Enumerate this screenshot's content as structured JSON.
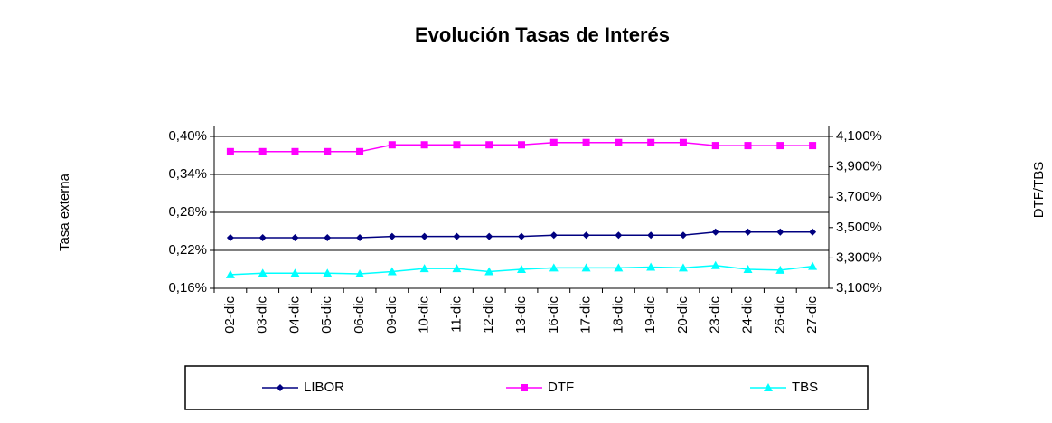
{
  "chart_data": {
    "type": "line",
    "title": "Evolución Tasas de Interés",
    "y_label": "Tasa externa",
    "y2_label": "DTF/TBS",
    "categories": [
      "02-dic",
      "03-dic",
      "04-dic",
      "05-dic",
      "06-dic",
      "09-dic",
      "10-dic",
      "11-dic",
      "12-dic",
      "13-dic",
      "16-dic",
      "17-dic",
      "18-dic",
      "19-dic",
      "20-dic",
      "23-dic",
      "24-dic",
      "26-dic",
      "27-dic"
    ],
    "ylim": [
      0.16,
      0.4
    ],
    "yticks": [
      {
        "value": 0.16,
        "label": "0,16%"
      },
      {
        "value": 0.22,
        "label": "0,22%"
      },
      {
        "value": 0.28,
        "label": "0,28%"
      },
      {
        "value": 0.34,
        "label": "0,34%"
      },
      {
        "value": 0.4,
        "label": "0,40%"
      }
    ],
    "y2lim": [
      3.1,
      4.1
    ],
    "y2ticks": [
      {
        "value": 3.1,
        "label": "3,100%"
      },
      {
        "value": 3.3,
        "label": "3,300%"
      },
      {
        "value": 3.5,
        "label": "3,500%"
      },
      {
        "value": 3.7,
        "label": "3,700%"
      },
      {
        "value": 3.9,
        "label": "3,900%"
      },
      {
        "value": 4.1,
        "label": "4,100%"
      }
    ],
    "grid": true,
    "legend": "bottom",
    "series": [
      {
        "name": "LIBOR",
        "color": "#000080",
        "marker": "diamond",
        "axis": "y",
        "values": [
          0.24,
          0.24,
          0.24,
          0.24,
          0.24,
          0.242,
          0.242,
          0.242,
          0.242,
          0.242,
          0.244,
          0.244,
          0.244,
          0.244,
          0.244,
          0.249,
          0.249,
          0.249,
          0.249
        ]
      },
      {
        "name": "DTF",
        "color": "#ff00ff",
        "marker": "square",
        "axis": "y2",
        "values": [
          4.0,
          4.0,
          4.0,
          4.0,
          4.0,
          4.045,
          4.045,
          4.045,
          4.045,
          4.045,
          4.06,
          4.06,
          4.06,
          4.06,
          4.06,
          4.04,
          4.04,
          4.04,
          4.04
        ]
      },
      {
        "name": "TBS",
        "color": "#00ffff",
        "marker": "triangle",
        "axis": "y2",
        "values": [
          3.19,
          3.2,
          3.2,
          3.2,
          3.195,
          3.21,
          3.23,
          3.23,
          3.21,
          3.225,
          3.235,
          3.235,
          3.235,
          3.24,
          3.235,
          3.25,
          3.225,
          3.22,
          3.245
        ]
      }
    ]
  }
}
